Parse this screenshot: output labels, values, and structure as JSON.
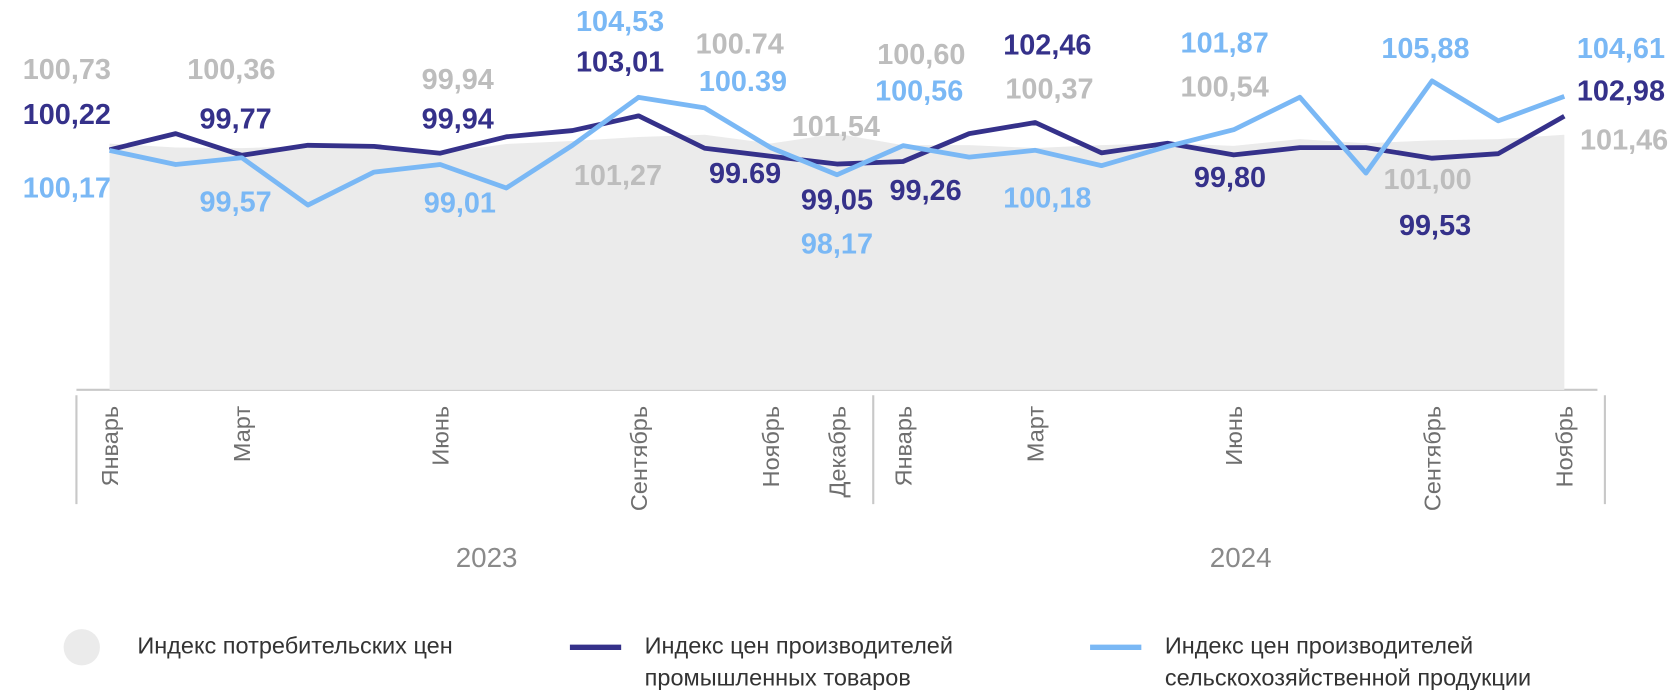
{
  "chart_data": {
    "type": "line",
    "categories": [
      "Январь",
      null,
      "Март",
      null,
      null,
      "Июнь",
      null,
      null,
      "Сентябрь",
      null,
      "Ноябрь",
      "Декабрь",
      "Январь",
      null,
      "Март",
      null,
      null,
      "Июнь",
      null,
      null,
      "Сентябрь",
      null,
      "Ноябрь"
    ],
    "groups": [
      "2023",
      "2024"
    ],
    "ylim": [
      80.5,
      112
    ],
    "series": [
      {
        "name": "Индекс потребительских цен",
        "type": "area",
        "color": "#ebebeb",
        "label_color": "#bdbdbd",
        "values": [
          100.73,
          100.41,
          100.36,
          100.5,
          100.6,
          99.94,
          100.7,
          100.94,
          101.27,
          101.46,
          100.74,
          101.54,
          100.6,
          100.6,
          100.37,
          100.6,
          100.76,
          100.54,
          101.1,
          100.76,
          101.0,
          101.1,
          101.46
        ],
        "value_labels": [
          "100,73",
          null,
          "100,36",
          null,
          null,
          "99,94",
          null,
          null,
          "101,27",
          null,
          "100.74",
          "101,54",
          "100,60",
          null,
          "100,37",
          null,
          null,
          "100,54",
          null,
          null,
          "101,00",
          null,
          "101,46"
        ]
      },
      {
        "name": "Индекс цен производителей промышленных товаров",
        "type": "line",
        "color": "#35318a",
        "label_color": "#35318a",
        "values": [
          100.22,
          101.55,
          99.77,
          100.59,
          100.5,
          99.94,
          101.29,
          101.8,
          103.01,
          100.35,
          99.69,
          99.05,
          99.26,
          101.55,
          102.46,
          99.97,
          100.76,
          99.8,
          100.4,
          100.4,
          99.53,
          99.9,
          102.98
        ],
        "value_labels": [
          "100,22",
          null,
          "99,77",
          null,
          null,
          "99,94",
          null,
          null,
          "103,01",
          null,
          "99.69",
          "99,05",
          "99,26",
          null,
          "102,46",
          null,
          null,
          "99,80",
          null,
          null,
          "99,53",
          null,
          "102,98"
        ]
      },
      {
        "name": "Индекс цен производителей сельскохозяйственной продукции",
        "type": "line",
        "color": "#7ab8f5",
        "label_color": "#7ab8f5",
        "values": [
          100.17,
          99.01,
          99.57,
          95.68,
          98.39,
          99.01,
          97.08,
          100.59,
          104.53,
          103.66,
          100.39,
          98.17,
          100.56,
          99.62,
          100.18,
          98.92,
          100.5,
          101.87,
          104.54,
          98.31,
          105.88,
          102.6,
          104.61
        ],
        "value_labels": [
          "100,17",
          null,
          "99,57",
          null,
          null,
          "99,01",
          null,
          null,
          "104,53",
          null,
          "100.39",
          "98,17",
          "100,56",
          null,
          "100,18",
          null,
          null,
          "101,87",
          null,
          null,
          "105,88",
          null,
          "104,61"
        ]
      }
    ]
  }
}
